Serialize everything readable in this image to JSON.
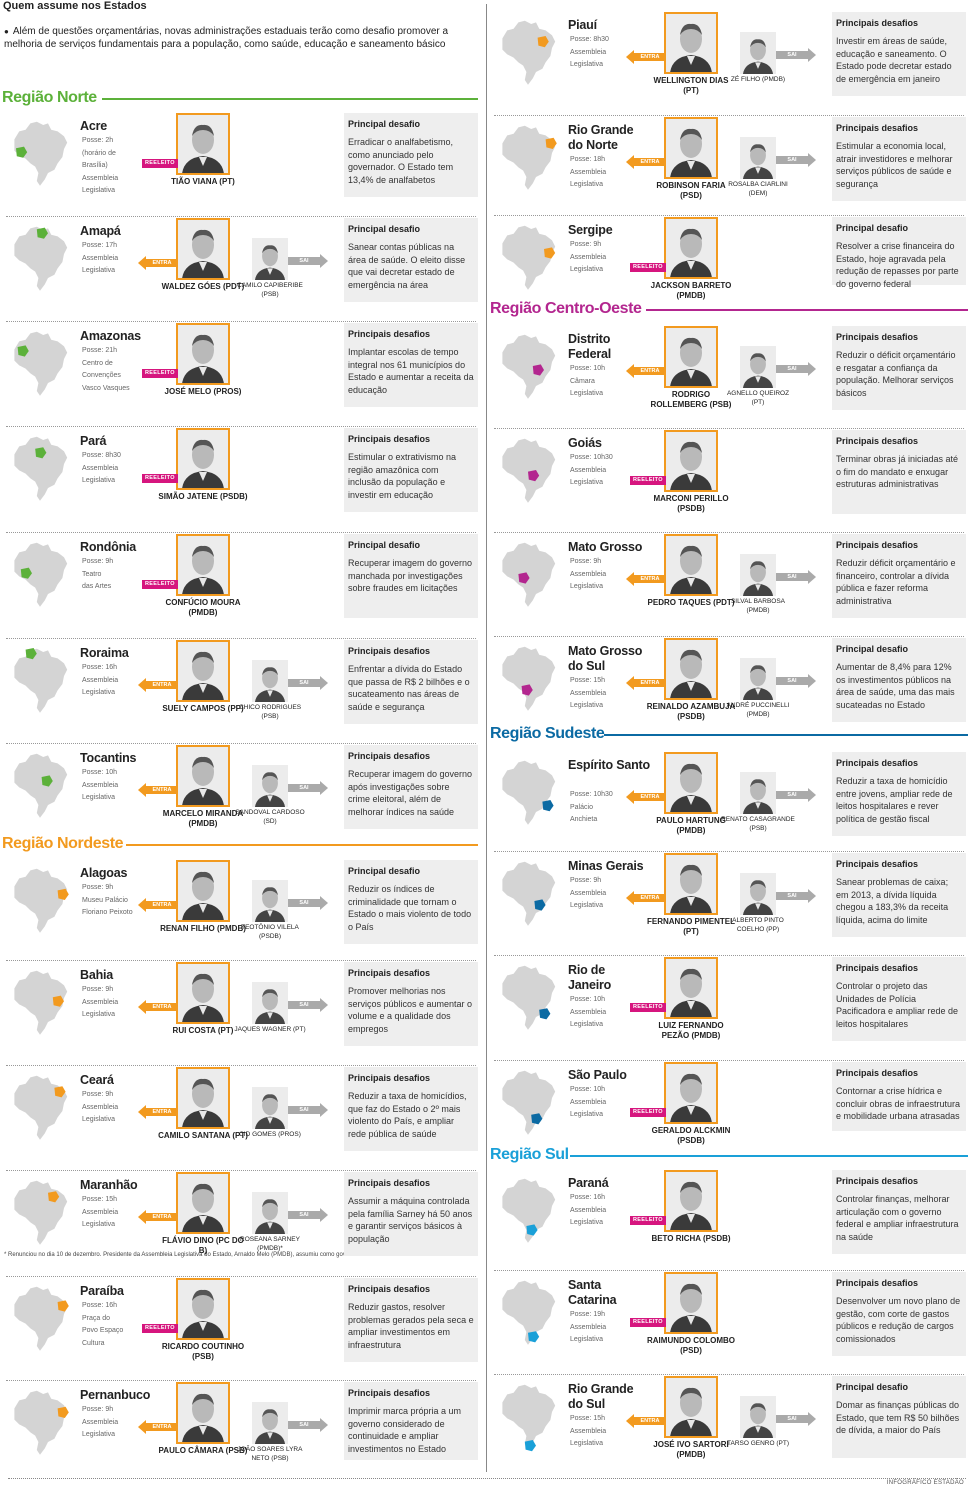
{
  "title": "Quem assume nos Estados",
  "intro": "Além de questões orçamentárias, novas administrações estaduais terão como desafio promover a melhoria de serviços fundamentais para a população, como saúde, educação e saneamento básico",
  "credit": "INFOGRÁFICO ESTADÃO",
  "footnote": "* Renunciou no dia 10 de dezembro. Presidente da Assembleia Legislativa do Estado, Arnaldo Melo (PMDB), assumiu como governador interino",
  "labels": {
    "entra": "ENTRA",
    "sai": "SAI",
    "reeleito": "REELEITO"
  },
  "colors": {
    "norte": "#5cb13a",
    "nordeste": "#f29a1f",
    "centro_oeste": "#b3268f",
    "sudeste": "#0b6aa3",
    "sul": "#1aa0d8",
    "map_gray": "#d4d4d4"
  },
  "regions": [
    {
      "label": "Região Norte",
      "color": "#5cb13a"
    },
    {
      "label": "Região Nordeste",
      "color": "#f29a1f"
    },
    {
      "label": "Região Centro-Oeste",
      "color": "#b3268f"
    },
    {
      "label": "Região Sudeste",
      "color": "#0b6aa3"
    },
    {
      "label": "Região Sul",
      "color": "#1aa0d8"
    }
  ],
  "states": [
    {
      "name": "Acre",
      "info": [
        "Posse: 2h",
        "(horário de",
        "Brasília)",
        "Assembleia",
        "Legislativa"
      ],
      "status": "reeleito",
      "gov": "TIÃO VIANA (PT)",
      "out": "",
      "challenge_title": "Principal desafio",
      "challenge": "Erradicar o analfabetismo, como anunciado pelo governador. O Estado tem 13,4% de analfabetos"
    },
    {
      "name": "Amapá",
      "info": [
        "Posse: 17h",
        "Assembleia",
        "Legislativa"
      ],
      "status": "entra",
      "gov": "WALDEZ GÓES (PDT)",
      "out": "CAMILO CAPIBERIBE (PSB)",
      "challenge_title": "Principal desafio",
      "challenge": "Sanear contas públicas na área de saúde. O eleito disse que vai decretar estado de emergência na área"
    },
    {
      "name": "Amazonas",
      "info": [
        "Posse: 21h",
        "Centro de",
        "Convenções",
        "Vasco Vasques"
      ],
      "status": "reeleito",
      "gov": "JOSÉ MELO (PROS)",
      "out": "",
      "challenge_title": "Principais desafios",
      "challenge": "Implantar escolas de tempo integral nos 61 municípios do Estado e aumentar a receita da educação"
    },
    {
      "name": "Pará",
      "info": [
        "Posse: 8h30",
        "Assembleia",
        "Legislativa"
      ],
      "status": "reeleito",
      "gov": "SIMÃO JATENE (PSDB)",
      "out": "",
      "challenge_title": "Principais desafios",
      "challenge": "Estimular o extrativismo na região amazônica com inclusão da população e investir em educação"
    },
    {
      "name": "Rondônia",
      "info": [
        "Posse: 9h",
        "Teatro",
        "das Artes"
      ],
      "status": "reeleito",
      "gov": "CONFÚCIO MOURA (PMDB)",
      "out": "",
      "challenge_title": "Principal desafio",
      "challenge": "Recuperar imagem do governo manchada por investigações sobre fraudes em licitações"
    },
    {
      "name": "Roraima",
      "info": [
        "Posse: 16h",
        "Assembleia",
        "Legislativa"
      ],
      "status": "entra",
      "gov": "SUELY CAMPOS (PP)",
      "out": "CHICO RODRIGUES (PSB)",
      "challenge_title": "Principais desafios",
      "challenge": "Enfrentar a dívida do Estado que passa de R$ 2 bilhões e o sucateamento nas áreas de saúde e segurança"
    },
    {
      "name": "Tocantins",
      "info": [
        "Posse: 10h",
        "Assembleia",
        "Legislativa"
      ],
      "status": "entra",
      "gov": "MARCELO MIRANDA (PMDB)",
      "out": "SANDOVAL CARDOSO (SD)",
      "challenge_title": "Principais desafios",
      "challenge": "Recuperar imagem do governo após investigações sobre crime eleitoral, além de melhorar índices na saúde"
    },
    {
      "name": "Alagoas",
      "info": [
        "Posse: 9h",
        "Museu Palácio",
        "Floriano Peixoto"
      ],
      "status": "entra",
      "gov": "RENAN FILHO (PMDB)",
      "out": "TEOTÔNIO VILELA (PSDB)",
      "challenge_title": "Principal desafio",
      "challenge": "Reduzir os índices de criminalidade que tornam o Estado o mais violento de todo o País"
    },
    {
      "name": "Bahia",
      "info": [
        "Posse: 9h",
        "Assembleia",
        "Legislativa"
      ],
      "status": "entra",
      "gov": "RUI COSTA (PT)",
      "out": "JAQUES WAGNER (PT)",
      "challenge_title": "Principais desafios",
      "challenge": "Promover melhorias nos serviços públicos e aumentar o volume e a qualidade dos empregos"
    },
    {
      "name": "Ceará",
      "info": [
        "Posse: 9h",
        "Assembleia",
        "Legislativa"
      ],
      "status": "entra",
      "gov": "CAMILO SANTANA (PT)",
      "out": "CID GOMES (PROS)",
      "challenge_title": "Principais desafios",
      "challenge": "Reduzir a taxa de homicídios, que faz do Estado o 2º mais violento do País, e ampliar rede pública de saúde"
    },
    {
      "name": "Maranhão",
      "info": [
        "Posse: 15h",
        "Assembleia",
        "Legislativa"
      ],
      "status": "entra",
      "gov": "FLÁVIO DINO (PC DO B)",
      "out": "ROSEANA SARNEY (PMDB)*",
      "challenge_title": "Principais desafios",
      "challenge": "Assumir a máquina controlada pela família Sarney há 50 anos e garantir serviços básicos à população"
    },
    {
      "name": "Paraíba",
      "info": [
        "Posse: 16h",
        "Praça do",
        "Povo Espaço",
        "Cultura"
      ],
      "status": "reeleito",
      "gov": "RICARDO COUTINHO (PSB)",
      "out": "",
      "challenge_title": "Principais desafios",
      "challenge": "Reduzir gastos, resolver problemas gerados pela seca e ampliar investimentos em infraestrutura"
    },
    {
      "name": "Pernanbuco",
      "info": [
        "Posse: 9h",
        "Assembleia",
        "Legislativa"
      ],
      "status": "entra",
      "gov": "PAULO CÂMARA (PSB)",
      "out": "JOÃO SOARES LYRA NETO (PSB)",
      "challenge_title": "Principais desafios",
      "challenge": "Imprimir marca própria a um governo considerado de continuidade e ampliar investimentos no Estado"
    },
    {
      "name": "Piauí",
      "info": [
        "Posse: 8h30",
        "Assembleia",
        "Legislativa"
      ],
      "status": "entra",
      "gov": "WELLINGTON DIAS (PT)",
      "out": "ZÉ FILHO (PMDB)",
      "challenge_title": "Principais desafios",
      "challenge": "Investir em áreas de saúde, educação e saneamento. O Estado pode decretar estado de emergência em janeiro"
    },
    {
      "name": "Rio Grande do Norte",
      "info": [
        "Posse: 18h",
        "Assembleia",
        "Legislativa"
      ],
      "status": "entra",
      "gov": "ROBINSON FARIA (PSD)",
      "out": "ROSALBA CIARLINI (DEM)",
      "challenge_title": "Principais desafios",
      "challenge": "Estimular a economia local, atrair investidores e melhorar serviços públicos de saúde e segurança"
    },
    {
      "name": "Sergipe",
      "info": [
        "Posse: 9h",
        "Assembleia",
        "Legislativa"
      ],
      "status": "reeleito",
      "gov": "JACKSON BARRETO (PMDB)",
      "out": "",
      "challenge_title": "Principal desafio",
      "challenge": "Resolver a crise financeira do Estado, hoje agravada pela redução de repasses por parte do governo federal"
    },
    {
      "name": "Distrito Federal",
      "info": [
        "Posse: 10h",
        "Câmara",
        "Legislativa"
      ],
      "status": "entra",
      "gov": "RODRIGO ROLLEMBERG (PSB)",
      "out": "AGNELLO QUEIROZ (PT)",
      "challenge_title": "Principais desafios",
      "challenge": "Reduzir o déficit orçamentário e resgatar a confiança da população. Melhorar serviços básicos"
    },
    {
      "name": "Goiás",
      "info": [
        "Posse: 10h30",
        "Assembleia",
        "Legislativa"
      ],
      "status": "reeleito",
      "gov": "MARCONI PERILLO (PSDB)",
      "out": "",
      "challenge_title": "Principais desafios",
      "challenge": "Terminar obras já iniciadas até o fim do mandato e enxugar estruturas administrativas"
    },
    {
      "name": "Mato Grosso",
      "info": [
        "Posse: 9h",
        "Assembleia",
        "Legislativa"
      ],
      "status": "entra",
      "gov": "PEDRO TAQUES (PDT)",
      "out": "SILVAL BARBOSA (PMDB)",
      "challenge_title": "Principais desafios",
      "challenge": "Reduzir déficit orçamentário e financeiro, controlar a dívida pública e fazer reforma administrativa"
    },
    {
      "name": "Mato Grosso do Sul",
      "info": [
        "Posse: 15h",
        "Assembleia",
        "Legislativa"
      ],
      "status": "entra",
      "gov": "REINALDO AZAMBUJA (PSDB)",
      "out": "ANDRÉ PUCCINELLI (PMDB)",
      "challenge_title": "Principal desafio",
      "challenge": "Aumentar de 8,4% para 12% os investimentos públicos na área de saúde, uma das mais sucateadas no Estado"
    },
    {
      "name": "Espírito Santo",
      "info": [
        "Posse: 10h30",
        "Palácio",
        "Anchieta"
      ],
      "status": "entra",
      "gov": "PAULO HARTUNG (PMDB)",
      "out": "RENATO CASAGRANDE (PSB)",
      "challenge_title": "Principais desafios",
      "challenge": "Reduzir a taxa de homicídio entre jovens, ampliar rede de leitos hospitalares e rever política de gestão fiscal"
    },
    {
      "name": "Minas Gerais",
      "info": [
        "Posse: 9h",
        "Assembleia",
        "Legislativa"
      ],
      "status": "entra",
      "gov": "FERNANDO PIMENTEL (PT)",
      "out": "ALBERTO PINTO COELHO (PP)",
      "challenge_title": "Principais desafios",
      "challenge": "Sanear problemas de caixa; em 2013, a dívida líquida chegou a 183,3% da receita líquida, acima do limite"
    },
    {
      "name": "Rio de Janeiro",
      "info": [
        "Posse: 10h",
        "Assembleia",
        "Legislativa"
      ],
      "status": "reeleito",
      "gov": "LUIZ FERNANDO PEZÃO (PMDB)",
      "out": "",
      "challenge_title": "Principais desafios",
      "challenge": "Controlar o projeto das Unidades de Polícia Pacificadora e ampliar rede de leitos hospitalares"
    },
    {
      "name": "São Paulo",
      "info": [
        "Posse: 10h",
        "Assembleia",
        "Legislativa"
      ],
      "status": "reeleito",
      "gov": "GERALDO ALCKMIN (PSDB)",
      "out": "",
      "challenge_title": "Principais desafios",
      "challenge": "Contornar a crise hídrica e concluir obras de infraestrutura e mobilidade urbana atrasadas"
    },
    {
      "name": "Paraná",
      "info": [
        "Posse: 16h",
        "Assembleia",
        "Legislativa"
      ],
      "status": "reeleito",
      "gov": "BETO RICHA (PSDB)",
      "out": "",
      "challenge_title": "Principais desafios",
      "challenge": "Controlar finanças, melhorar articulação com o governo federal e ampliar infraestrutura na saúde"
    },
    {
      "name": "Santa Catarina",
      "info": [
        "Posse: 19h",
        "Assembleia",
        "Legislativa"
      ],
      "status": "reeleito",
      "gov": "RAIMUNDO COLOMBO (PSD)",
      "out": "",
      "challenge_title": "Principais desafios",
      "challenge": "Desenvolver um novo plano de gestão, com corte de gastos públicos e redução de cargos comissionados"
    },
    {
      "name": "Rio Grande do Sul",
      "info": [
        "Posse: 15h",
        "Assembleia",
        "Legislativa"
      ],
      "status": "entra",
      "gov": "JOSÉ IVO SARTORI (PMDB)",
      "out": "TARSO GENRO (PT)",
      "challenge_title": "Principal desafio",
      "challenge": "Domar as finanças públicas do Estado, que tem R$ 50 bilhões de dívida, a maior do País"
    }
  ]
}
